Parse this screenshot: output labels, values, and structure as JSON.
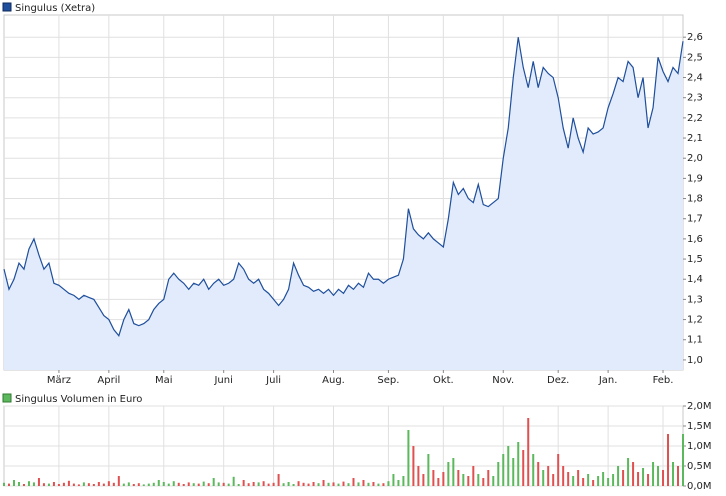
{
  "chart_data": [
    {
      "type": "area",
      "legend": "Singulus (Xetra)",
      "color": "#1f4f9c",
      "fill": "#e1ebfb",
      "categories": [
        null,
        null,
        null,
        null,
        null,
        null,
        null,
        null,
        null,
        null,
        null,
        "März",
        null,
        null,
        null,
        null,
        null,
        null,
        null,
        null,
        null,
        "April",
        null,
        null,
        null,
        null,
        null,
        null,
        null,
        null,
        null,
        null,
        "Mai",
        null,
        null,
        null,
        null,
        null,
        null,
        null,
        null,
        null,
        null,
        null,
        "Juni",
        null,
        null,
        null,
        null,
        null,
        null,
        null,
        null,
        null,
        "Juli",
        null,
        null,
        null,
        null,
        null,
        null,
        null,
        null,
        null,
        null,
        null,
        "Aug.",
        null,
        null,
        null,
        null,
        null,
        null,
        null,
        null,
        null,
        null,
        "Sep.",
        null,
        null,
        null,
        null,
        null,
        null,
        null,
        null,
        null,
        null,
        "Okt.",
        null,
        null,
        null,
        null,
        null,
        null,
        null,
        null,
        null,
        null,
        null,
        "Nov.",
        null,
        null,
        null,
        null,
        null,
        null,
        null,
        null,
        null,
        null,
        "Dez.",
        null,
        null,
        null,
        null,
        null,
        null,
        null,
        null,
        null,
        "Jan.",
        null,
        null,
        null,
        null,
        null,
        null,
        null,
        null,
        null,
        null,
        "Feb.",
        null,
        null,
        null,
        null
      ],
      "values": [
        1.45,
        1.35,
        1.4,
        1.48,
        1.45,
        1.55,
        1.6,
        1.52,
        1.45,
        1.48,
        1.38,
        1.37,
        1.35,
        1.33,
        1.32,
        1.3,
        1.32,
        1.31,
        1.3,
        1.26,
        1.22,
        1.2,
        1.15,
        1.12,
        1.2,
        1.25,
        1.18,
        1.17,
        1.18,
        1.2,
        1.25,
        1.28,
        1.3,
        1.4,
        1.43,
        1.4,
        1.38,
        1.35,
        1.38,
        1.37,
        1.4,
        1.35,
        1.38,
        1.4,
        1.37,
        1.38,
        1.4,
        1.48,
        1.45,
        1.4,
        1.38,
        1.4,
        1.35,
        1.33,
        1.3,
        1.27,
        1.3,
        1.35,
        1.48,
        1.42,
        1.37,
        1.36,
        1.34,
        1.35,
        1.33,
        1.35,
        1.32,
        1.35,
        1.33,
        1.37,
        1.35,
        1.38,
        1.36,
        1.43,
        1.4,
        1.4,
        1.38,
        1.4,
        1.41,
        1.42,
        1.5,
        1.75,
        1.65,
        1.62,
        1.6,
        1.63,
        1.6,
        1.58,
        1.56,
        1.7,
        1.88,
        1.82,
        1.85,
        1.8,
        1.78,
        1.87,
        1.77,
        1.76,
        1.78,
        1.8,
        2.0,
        2.15,
        2.4,
        2.6,
        2.45,
        2.35,
        2.48,
        2.35,
        2.45,
        2.42,
        2.4,
        2.3,
        2.15,
        2.05,
        2.2,
        2.1,
        2.03,
        2.15,
        2.12,
        2.13,
        2.15,
        2.25,
        2.32,
        2.4,
        2.38,
        2.48,
        2.45,
        2.3,
        2.4,
        2.15,
        2.25,
        2.5,
        2.43,
        2.38,
        2.45,
        2.42,
        2.58
      ],
      "ylim": [
        0.95,
        2.71
      ],
      "yticks": [
        {
          "value": 1.0,
          "label": "1,0"
        },
        {
          "value": 1.1,
          "label": "1,1"
        },
        {
          "value": 1.2,
          "label": "1,2"
        },
        {
          "value": 1.3,
          "label": "1,3"
        },
        {
          "value": 1.4,
          "label": "1,4"
        },
        {
          "value": 1.5,
          "label": "1,5"
        },
        {
          "value": 1.6,
          "label": "1,6"
        },
        {
          "value": 1.7,
          "label": "1,7"
        },
        {
          "value": 1.8,
          "label": "1,8"
        },
        {
          "value": 1.9,
          "label": "1,9"
        },
        {
          "value": 2.0,
          "label": "2,0"
        },
        {
          "value": 2.1,
          "label": "2,1"
        },
        {
          "value": 2.2,
          "label": "2,2"
        },
        {
          "value": 2.3,
          "label": "2,3"
        },
        {
          "value": 2.4,
          "label": "2,4"
        },
        {
          "value": 2.5,
          "label": "2,5"
        },
        {
          "value": 2.6,
          "label": "2,6"
        }
      ],
      "grid": true
    },
    {
      "type": "bar",
      "legend": "Singulus Volumen in Euro",
      "color": "#5cb85c",
      "up_color": "#5cb85c",
      "down_color": "#e05050",
      "values": [
        80000,
        60000,
        150000,
        100000,
        50000,
        120000,
        90000,
        200000,
        70000,
        60000,
        100000,
        50000,
        80000,
        130000,
        60000,
        40000,
        90000,
        70000,
        50000,
        100000,
        60000,
        120000,
        80000,
        250000,
        60000,
        90000,
        50000,
        70000,
        40000,
        60000,
        80000,
        150000,
        100000,
        60000,
        120000,
        80000,
        50000,
        90000,
        70000,
        60000,
        110000,
        70000,
        200000,
        90000,
        80000,
        60000,
        230000,
        50000,
        150000,
        70000,
        100000,
        90000,
        120000,
        60000,
        80000,
        300000,
        70000,
        100000,
        50000,
        120000,
        80000,
        60000,
        100000,
        70000,
        150000,
        80000,
        90000,
        60000,
        110000,
        70000,
        200000,
        90000,
        150000,
        80000,
        100000,
        60000,
        70000,
        120000,
        300000,
        150000,
        250000,
        1400000,
        1000000,
        500000,
        300000,
        800000,
        400000,
        200000,
        350000,
        600000,
        700000,
        400000,
        300000,
        250000,
        500000,
        300000,
        200000,
        400000,
        250000,
        600000,
        800000,
        1000000,
        700000,
        1100000,
        900000,
        1700000,
        800000,
        600000,
        400000,
        500000,
        300000,
        800000,
        500000,
        350000,
        250000,
        400000,
        200000,
        300000,
        150000,
        250000,
        350000,
        200000,
        300000,
        500000,
        400000,
        700000,
        600000,
        350000,
        450000,
        300000,
        600000,
        500000,
        400000,
        1300000,
        600000,
        500000,
        1300000
      ],
      "ylim": [
        0,
        2000000
      ],
      "yticks": [
        {
          "value": 0,
          "label": "0,0M"
        },
        {
          "value": 500000,
          "label": "0,5M"
        },
        {
          "value": 1000000,
          "label": "1,0M"
        },
        {
          "value": 1500000,
          "label": "1,5M"
        },
        {
          "value": 2000000,
          "label": "2,0M"
        }
      ],
      "grid": true
    }
  ]
}
